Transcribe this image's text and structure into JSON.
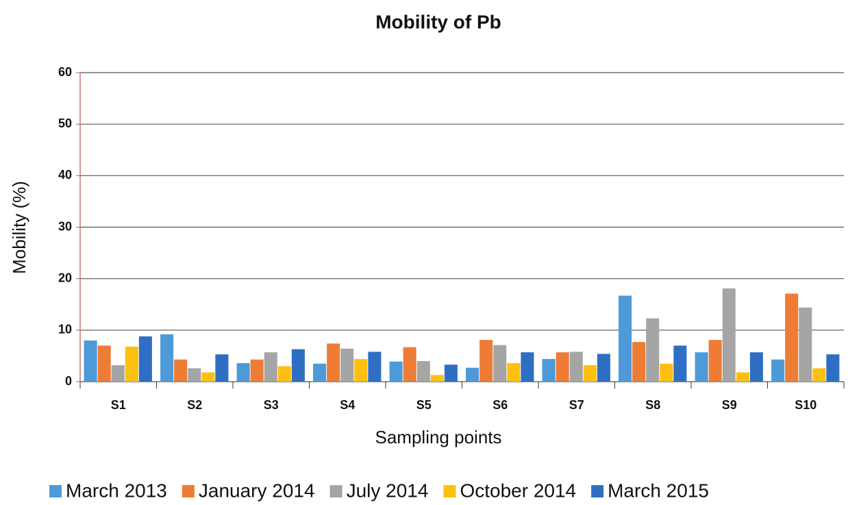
{
  "chart_data": {
    "type": "bar",
    "title": "Mobility of Pb",
    "x_label": "Sampling points",
    "y_label": "Mobility (%)",
    "categories": [
      "S1",
      "S2",
      "S3",
      "S4",
      "S5",
      "S6",
      "S7",
      "S8",
      "S9",
      "S10"
    ],
    "series": [
      {
        "name": "March 2013",
        "color": "#4e9ad8",
        "values": [
          8.0,
          9.2,
          3.6,
          3.5,
          3.9,
          2.7,
          4.4,
          16.7,
          5.7,
          4.3
        ]
      },
      {
        "name": "January 2014",
        "color": "#ee7c35",
        "values": [
          7.0,
          4.3,
          4.3,
          7.4,
          6.7,
          8.1,
          5.7,
          7.7,
          8.1,
          17.1
        ]
      },
      {
        "name": "July 2014",
        "color": "#a5a5a5",
        "values": [
          3.2,
          2.6,
          5.7,
          6.4,
          4.0,
          7.1,
          5.8,
          12.3,
          18.1,
          14.4
        ]
      },
      {
        "name": "October 2014",
        "color": "#fdc010",
        "values": [
          6.8,
          1.8,
          3.0,
          4.4,
          1.3,
          3.6,
          3.2,
          3.5,
          1.8,
          2.6
        ]
      },
      {
        "name": "March 2015",
        "color": "#2e6fc4",
        "values": [
          8.8,
          5.3,
          6.3,
          5.8,
          3.3,
          5.7,
          5.4,
          7.0,
          5.7,
          5.3
        ]
      }
    ],
    "ylim": [
      0,
      60
    ],
    "yticks": [
      0,
      10,
      20,
      30,
      40,
      50,
      60
    ],
    "grid": true,
    "legend": "bottom"
  }
}
